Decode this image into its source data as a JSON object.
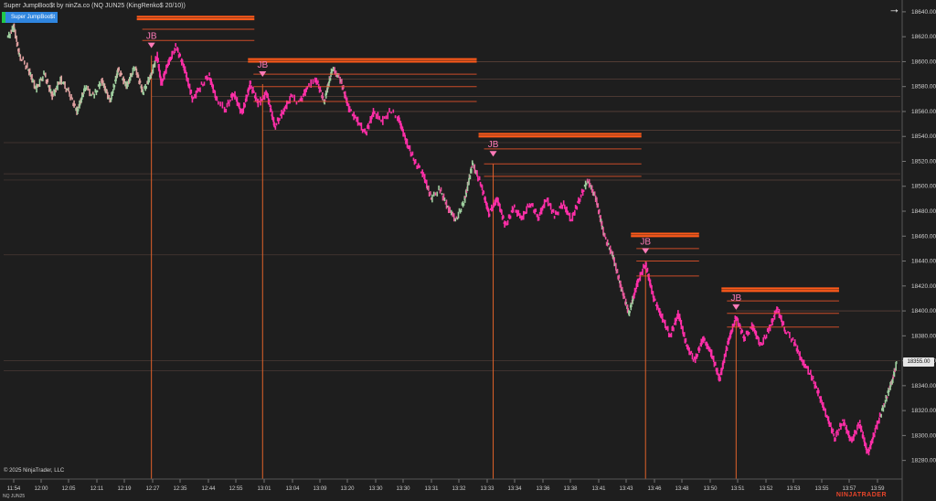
{
  "header": {
    "title": "Super JumpBoo$t by ninZa.co (NQ JUN25 (KingRenko$ 20/10))",
    "indicator_button": "Super JumpBoo$t"
  },
  "footer": {
    "copyright": "© 2025 NinjaTrader, LLC",
    "symbol": "NQ JUN25",
    "brand": "NINJATRADER"
  },
  "toolbar": {
    "arrow_icon": "arrow-right-icon"
  },
  "colors": {
    "background": "#1e1e1e",
    "bull_bar": "#9fcf9f",
    "bear_bar": "#e8589c",
    "signal_bar": "#ff2fa8",
    "level_line": "#e8542a",
    "vertical_line": "#e0622a",
    "signal_marker": "#ff7ab8"
  },
  "current_price": "18355.00",
  "chart_data": {
    "type": "line",
    "series_name": "NQ JUN25",
    "y_ticks": [
      18280,
      18300,
      18320,
      18340,
      18360,
      18380,
      18400,
      18420,
      18440,
      18460,
      18480,
      18500,
      18520,
      18540,
      18560,
      18580,
      18600,
      18620,
      18640
    ],
    "ylim": [
      18268,
      18648
    ],
    "x_ticks": [
      "11:54",
      "12:00",
      "12:05",
      "12:11",
      "12:19",
      "12:27",
      "12:35",
      "12:44",
      "12:55",
      "13:01",
      "13:04",
      "13:09",
      "13:20",
      "13:30",
      "13:30",
      "13:31",
      "13:32",
      "13:33",
      "13:34",
      "13:36",
      "13:38",
      "13:41",
      "13:43",
      "13:46",
      "13:48",
      "13:50",
      "13:51",
      "13:52",
      "13:53",
      "13:55",
      "13:57",
      "13:59"
    ],
    "price_path": [
      [
        0.0,
        18618
      ],
      [
        0.8,
        18628
      ],
      [
        1.5,
        18605
      ],
      [
        2.5,
        18595
      ],
      [
        3.5,
        18578
      ],
      [
        4.5,
        18590
      ],
      [
        5.5,
        18572
      ],
      [
        6.5,
        18586
      ],
      [
        7.5,
        18575
      ],
      [
        8.5,
        18560
      ],
      [
        9.5,
        18580
      ],
      [
        10.5,
        18572
      ],
      [
        11.5,
        18585
      ],
      [
        12.5,
        18568
      ],
      [
        13.5,
        18594
      ],
      [
        14.5,
        18580
      ],
      [
        15.5,
        18596
      ],
      [
        16.5,
        18575
      ],
      [
        17.5,
        18590
      ],
      [
        18.2,
        18605
      ],
      [
        18.7,
        18582
      ],
      [
        19.5,
        18598
      ],
      [
        20.5,
        18612
      ],
      [
        21.5,
        18595
      ],
      [
        22.5,
        18570
      ],
      [
        23.5,
        18580
      ],
      [
        24.5,
        18589
      ],
      [
        25.5,
        18568
      ],
      [
        26.5,
        18562
      ],
      [
        27.5,
        18575
      ],
      [
        28.5,
        18558
      ],
      [
        29.5,
        18582
      ],
      [
        30.5,
        18566
      ],
      [
        31.5,
        18575
      ],
      [
        32.5,
        18548
      ],
      [
        33.5,
        18560
      ],
      [
        34.5,
        18572
      ],
      [
        35.5,
        18567
      ],
      [
        36.5,
        18580
      ],
      [
        37.5,
        18586
      ],
      [
        38.5,
        18568
      ],
      [
        39.5,
        18595
      ],
      [
        40.5,
        18585
      ],
      [
        41.5,
        18562
      ],
      [
        42.5,
        18553
      ],
      [
        43.5,
        18542
      ],
      [
        44.5,
        18560
      ],
      [
        45.5,
        18552
      ],
      [
        46.5,
        18560
      ],
      [
        47.5,
        18555
      ],
      [
        48.5,
        18535
      ],
      [
        49.5,
        18520
      ],
      [
        50.5,
        18510
      ],
      [
        51.5,
        18490
      ],
      [
        52.5,
        18498
      ],
      [
        53.5,
        18483
      ],
      [
        54.5,
        18473
      ],
      [
        55.5,
        18488
      ],
      [
        56.5,
        18518
      ],
      [
        57.5,
        18502
      ],
      [
        58.5,
        18478
      ],
      [
        59.5,
        18490
      ],
      [
        60.5,
        18468
      ],
      [
        61.5,
        18483
      ],
      [
        62.5,
        18474
      ],
      [
        63.5,
        18487
      ],
      [
        64.5,
        18475
      ],
      [
        65.5,
        18490
      ],
      [
        66.5,
        18476
      ],
      [
        67.5,
        18486
      ],
      [
        68.5,
        18473
      ],
      [
        69.5,
        18490
      ],
      [
        70.5,
        18505
      ],
      [
        71.5,
        18490
      ],
      [
        72.5,
        18460
      ],
      [
        73.5,
        18445
      ],
      [
        74.5,
        18420
      ],
      [
        75.5,
        18398
      ],
      [
        76.5,
        18422
      ],
      [
        77.5,
        18438
      ],
      [
        78.5,
        18410
      ],
      [
        79.5,
        18395
      ],
      [
        80.5,
        18380
      ],
      [
        81.5,
        18398
      ],
      [
        82.5,
        18372
      ],
      [
        83.5,
        18360
      ],
      [
        84.5,
        18378
      ],
      [
        85.5,
        18366
      ],
      [
        86.5,
        18345
      ],
      [
        87.5,
        18374
      ],
      [
        88.5,
        18395
      ],
      [
        89.5,
        18378
      ],
      [
        90.5,
        18388
      ],
      [
        91.5,
        18372
      ],
      [
        92.5,
        18385
      ],
      [
        93.5,
        18402
      ],
      [
        94.5,
        18384
      ],
      [
        95.5,
        18376
      ],
      [
        96.5,
        18360
      ],
      [
        97.5,
        18350
      ],
      [
        98.5,
        18334
      ],
      [
        99.5,
        18316
      ],
      [
        100.5,
        18298
      ],
      [
        101.5,
        18312
      ],
      [
        102.5,
        18295
      ],
      [
        103.5,
        18310
      ],
      [
        104.5,
        18285
      ],
      [
        105.5,
        18306
      ],
      [
        106.5,
        18325
      ],
      [
        107.5,
        18345
      ],
      [
        108.0,
        18358
      ]
    ],
    "path_x_max": 108.0,
    "signals": [
      {
        "label": "JB",
        "x": 17.5,
        "price": 18605,
        "levels": [
          18636,
          18634,
          18626,
          18617
        ],
        "level_end_x": 30,
        "faint_levels": [
          18600,
          18586,
          18572
        ],
        "faint_end_x": 108
      },
      {
        "label": "JB",
        "x": 31.0,
        "price": 18582,
        "levels": [
          18602,
          18600,
          18590,
          18580,
          18568
        ],
        "level_end_x": 57,
        "faint_levels": [
          18560,
          18545
        ],
        "faint_end_x": 108
      },
      {
        "label": "JB",
        "x": 59.0,
        "price": 18518,
        "levels": [
          18542,
          18540,
          18530,
          18518,
          18508
        ],
        "level_end_x": 77,
        "faint_levels": [
          18505
        ],
        "faint_end_x": 108
      },
      {
        "label": "JB",
        "x": 77.5,
        "price": 18440,
        "levels": [
          18462,
          18460,
          18450,
          18440,
          18428
        ],
        "level_end_x": 84,
        "faint_levels": [],
        "faint_end_x": 108
      },
      {
        "label": "JB",
        "x": 88.5,
        "price": 18395,
        "levels": [
          18418,
          18416,
          18408,
          18398,
          18387
        ],
        "level_end_x": 101,
        "faint_levels": [
          18400
        ],
        "faint_end_x": 108
      }
    ],
    "extra_faint_levels": [
      18535,
      18510,
      18505,
      18445,
      18360,
      18352
    ]
  }
}
